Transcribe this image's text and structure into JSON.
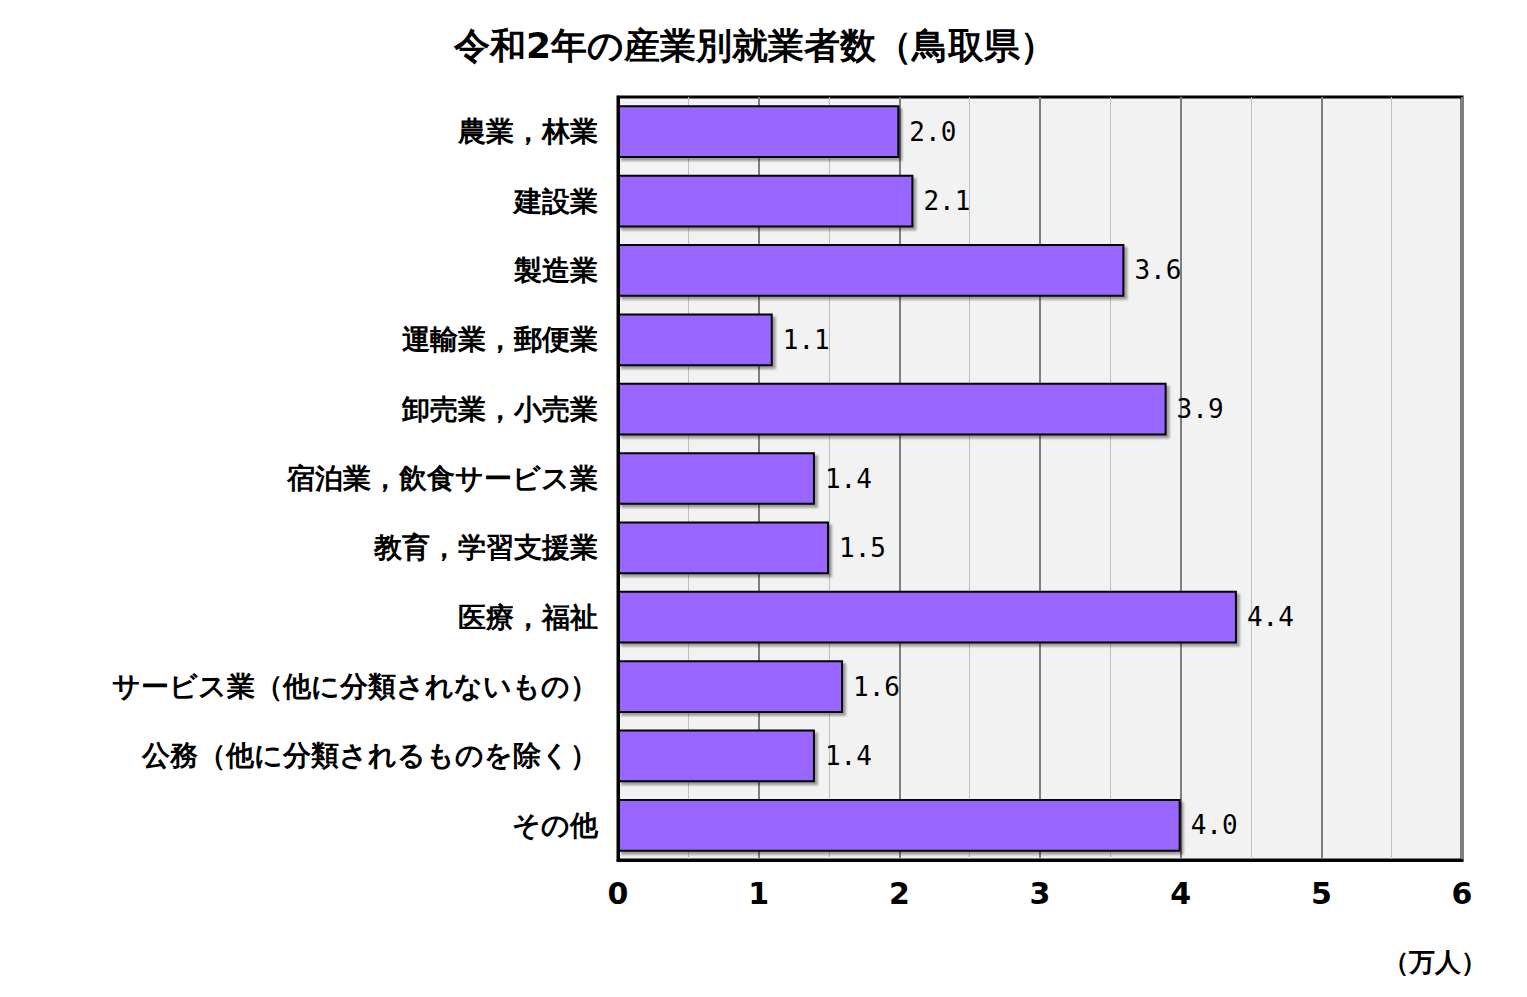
{
  "chart_data": {
    "type": "bar",
    "title": "令和2年の産業別就業者数（鳥取県）",
    "orientation": "horizontal",
    "categories": [
      "農業，林業",
      "建設業",
      "製造業",
      "運輸業，郵便業",
      "卸売業，小売業",
      "宿泊業，飲食サービス業",
      "教育，学習支援業",
      "医療，福祉",
      "サービス業（他に分類されないもの）",
      "公務（他に分類されるものを除く）",
      "その他"
    ],
    "values": [
      2.0,
      2.1,
      3.6,
      1.1,
      3.9,
      1.4,
      1.5,
      4.4,
      1.6,
      1.4,
      4.0
    ],
    "value_labels": [
      "2.0",
      "2.1",
      "3.6",
      "1.1",
      "3.9",
      "1.4",
      "1.5",
      "4.4",
      "1.6",
      "1.4",
      "4.0"
    ],
    "color": "#9966ff",
    "xlabel": "（万人）",
    "xlim": [
      0,
      6
    ],
    "xticks": [
      0,
      1,
      2,
      3,
      4,
      5,
      6
    ],
    "grid": true,
    "data_labels": true
  }
}
